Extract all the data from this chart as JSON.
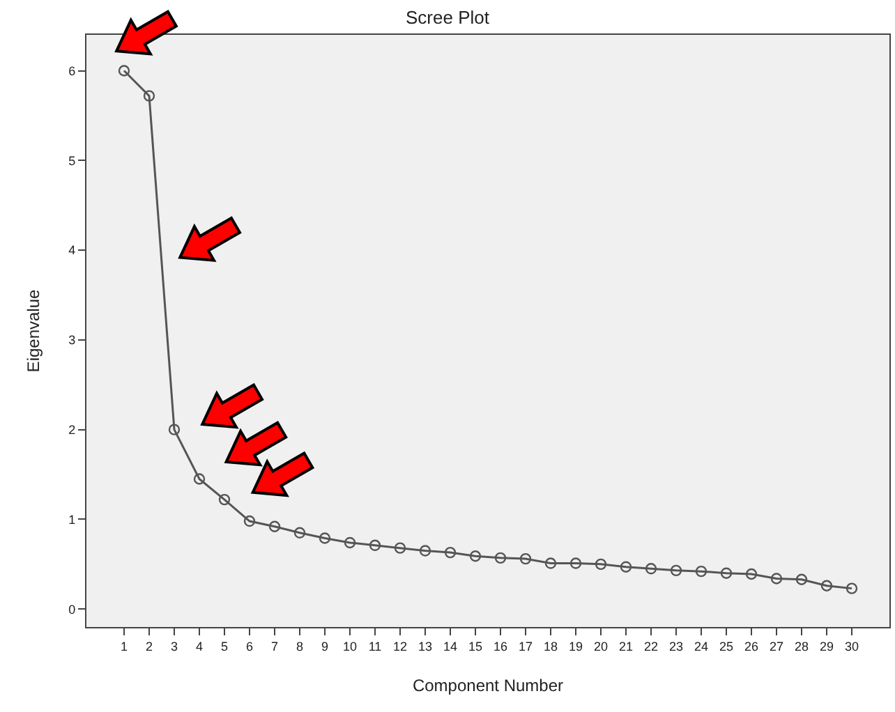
{
  "chart_data": {
    "type": "line",
    "title": "Scree Plot",
    "xlabel": "Component Number",
    "ylabel": "Eigenvalue",
    "x": [
      1,
      2,
      3,
      4,
      5,
      6,
      7,
      8,
      9,
      10,
      11,
      12,
      13,
      14,
      15,
      16,
      17,
      18,
      19,
      20,
      21,
      22,
      23,
      24,
      25,
      26,
      27,
      28,
      29,
      30
    ],
    "xlim": [
      -0.5,
      31.5
    ],
    "xticks": [
      1,
      2,
      3,
      4,
      5,
      6,
      7,
      8,
      9,
      10,
      11,
      12,
      13,
      14,
      15,
      16,
      17,
      18,
      19,
      20,
      21,
      22,
      23,
      24,
      25,
      26,
      27,
      28,
      29,
      30
    ],
    "series": [
      {
        "color": "#555555",
        "values": [
          6.0,
          5.72,
          2.0,
          1.45,
          1.22,
          0.98,
          0.92,
          0.85,
          0.79,
          0.74,
          0.71,
          0.68,
          0.65,
          0.63,
          0.59,
          0.57,
          0.56,
          0.51,
          0.51,
          0.5,
          0.47,
          0.45,
          0.43,
          0.42,
          0.4,
          0.39,
          0.34,
          0.33,
          0.26,
          0.23
        ]
      }
    ],
    "ylim": [
      -0.2,
      6.4
    ],
    "yticks": [
      0,
      1,
      2,
      3,
      4,
      5,
      6
    ],
    "grid": false,
    "marker": "circle",
    "line_style": "solid"
  }
}
